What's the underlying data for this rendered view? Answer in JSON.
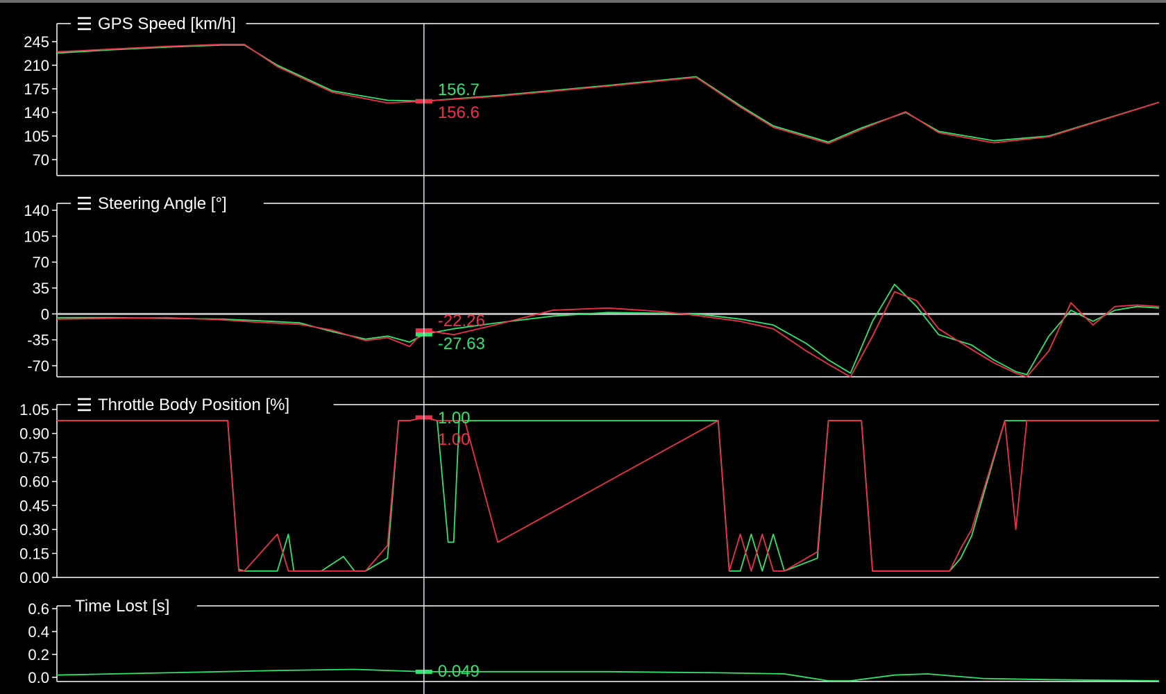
{
  "colors": {
    "background": "#000000",
    "axis": "#ffffff",
    "reference_lap": "#2ee66e",
    "compare_lap": "#f0304a",
    "cursor": "#d8e2ef",
    "zero_line": "#bdbdbd"
  },
  "icons": {
    "panel_menu": "hamburger-icon"
  },
  "cursor": {
    "x": 0.333
  },
  "chart_data": [
    {
      "type": "line",
      "title": "GPS Speed [km/h]",
      "has_menu_icon": true,
      "ylim": [
        45,
        263
      ],
      "yticks": [
        "245",
        "210",
        "175",
        "140",
        "105",
        "70"
      ],
      "ytick_values": [
        245,
        210,
        175,
        140,
        105,
        70
      ],
      "x": [
        0,
        0.05,
        0.1,
        0.15,
        0.17,
        0.2,
        0.25,
        0.3,
        0.333,
        0.4,
        0.5,
        0.58,
        0.62,
        0.65,
        0.7,
        0.73,
        0.77,
        0.8,
        0.85,
        0.9,
        1
      ],
      "series": [
        {
          "color": "#2ee66e",
          "values": [
            228,
            233,
            237,
            240,
            240,
            210,
            172,
            158,
            156.7,
            165,
            180,
            193,
            150,
            120,
            96,
            117,
            140,
            112,
            98,
            105,
            155
          ]
        },
        {
          "color": "#f0304a",
          "values": [
            230,
            234,
            238,
            241,
            241,
            208,
            170,
            154,
            156.6,
            164,
            179,
            192,
            148,
            118,
            94,
            115,
            141,
            110,
            95,
            104,
            155
          ]
        }
      ],
      "cursor_values": [
        "156.7",
        "156.6"
      ]
    },
    {
      "type": "line",
      "title": "Steering Angle [°]",
      "has_menu_icon": true,
      "ylim": [
        -90,
        152
      ],
      "yticks": [
        "140",
        "105",
        "70",
        "35",
        "0",
        "-35",
        "-70"
      ],
      "ytick_values": [
        140,
        105,
        70,
        35,
        0,
        -35,
        -70
      ],
      "zero_line": 0,
      "x": [
        0,
        0.05,
        0.1,
        0.15,
        0.18,
        0.22,
        0.25,
        0.28,
        0.3,
        0.32,
        0.333,
        0.36,
        0.4,
        0.45,
        0.5,
        0.55,
        0.58,
        0.62,
        0.65,
        0.68,
        0.7,
        0.72,
        0.74,
        0.76,
        0.78,
        0.8,
        0.83,
        0.85,
        0.87,
        0.88,
        0.9,
        0.92,
        0.94,
        0.96,
        0.98,
        1
      ],
      "series": [
        {
          "color": "#2ee66e",
          "values": [
            -5,
            -5,
            -6,
            -7,
            -9,
            -12,
            -24,
            -34,
            -30,
            -38,
            -27.63,
            -20,
            -12,
            -3,
            2,
            1,
            0,
            -7,
            -15,
            -40,
            -62,
            -80,
            -10,
            40,
            10,
            -28,
            -42,
            -62,
            -78,
            -82,
            -30,
            5,
            -10,
            5,
            10,
            8
          ]
        },
        {
          "color": "#f0304a",
          "values": [
            -7,
            -6,
            -5,
            -8,
            -11,
            -14,
            -22,
            -36,
            -32,
            -44,
            -22.26,
            -28,
            -14,
            5,
            8,
            3,
            -2,
            -10,
            -20,
            -50,
            -68,
            -85,
            -30,
            30,
            18,
            -20,
            -48,
            -66,
            -80,
            -85,
            -50,
            15,
            -15,
            10,
            12,
            10
          ]
        }
      ],
      "cursor_values": [
        "-22.26",
        "-27.63"
      ]
    },
    {
      "type": "line",
      "title": "Throttle Body Position [%]",
      "has_menu_icon": true,
      "ylim": [
        0,
        1.1
      ],
      "yticks": [
        "1.05",
        "0.90",
        "0.75",
        "0.60",
        "0.45",
        "0.30",
        "0.15",
        "0.00"
      ],
      "ytick_values": [
        1.05,
        0.9,
        0.75,
        0.6,
        0.45,
        0.3,
        0.15,
        0
      ],
      "x": [
        0,
        0.155,
        0.165,
        0.17,
        0.2,
        0.21,
        0.215,
        0.22,
        0.24,
        0.26,
        0.27,
        0.28,
        0.3,
        0.31,
        0.32,
        0.333,
        0.345,
        0.355,
        0.36,
        0.365,
        0.37,
        0.4,
        0.6,
        0.61,
        0.62,
        0.63,
        0.64,
        0.65,
        0.66,
        0.69,
        0.7,
        0.71,
        0.73,
        0.74,
        0.8,
        0.81,
        0.82,
        0.83,
        0.86,
        0.87,
        0.88,
        0.89,
        0.9,
        0.905,
        1
      ],
      "series": [
        {
          "color": "#2ee66e",
          "values": [
            0.98,
            0.98,
            0.05,
            0.04,
            0.04,
            0.27,
            0.04,
            0.04,
            0.04,
            0.13,
            0.04,
            0.04,
            0.12,
            0.98,
            0.98,
            1.0,
            0.98,
            0.22,
            0.22,
            0.98,
            0.98,
            0.98,
            0.98,
            0.04,
            0.04,
            0.27,
            0.04,
            0.27,
            0.04,
            0.12,
            0.98,
            0.98,
            0.98,
            0.04,
            0.04,
            0.04,
            0.12,
            0.26,
            0.98,
            0.98,
            0.98,
            0.98,
            0.98,
            0.98,
            0.98
          ]
        },
        {
          "color": "#f0304a",
          "values": [
            0.98,
            0.98,
            0.04,
            0.04,
            0.27,
            0.04,
            0.04,
            0.04,
            0.04,
            0.04,
            0.04,
            0.04,
            0.2,
            0.98,
            0.98,
            1.0,
            0.98,
            0.98,
            0.98,
            0.98,
            0.98,
            0.22,
            0.98,
            0.04,
            0.27,
            0.04,
            0.27,
            0.04,
            0.04,
            0.16,
            0.98,
            0.98,
            0.98,
            0.04,
            0.04,
            0.04,
            0.18,
            0.3,
            0.98,
            0.3,
            0.98,
            0.98,
            0.98,
            0.98,
            0.98
          ]
        }
      ],
      "cursor_values": [
        "1.00",
        "1.00"
      ]
    },
    {
      "type": "line",
      "title": "Time Lost [s]",
      "has_menu_icon": false,
      "ylim": [
        -0.03,
        0.65
      ],
      "yticks": [
        "0.6",
        "0.4",
        "0.2",
        "0.0"
      ],
      "ytick_values": [
        0.6,
        0.4,
        0.2,
        0.0
      ],
      "x": [
        0,
        0.1,
        0.2,
        0.27,
        0.333,
        0.4,
        0.5,
        0.6,
        0.66,
        0.7,
        0.72,
        0.76,
        0.79,
        0.84,
        0.9,
        1
      ],
      "series": [
        {
          "color": "#2ee66e",
          "values": [
            0.02,
            0.04,
            0.06,
            0.07,
            0.049,
            0.05,
            0.05,
            0.04,
            0.03,
            -0.03,
            -0.03,
            0.02,
            0.03,
            -0.01,
            -0.02,
            -0.03
          ]
        }
      ],
      "cursor_values": [
        "0.049"
      ]
    }
  ]
}
